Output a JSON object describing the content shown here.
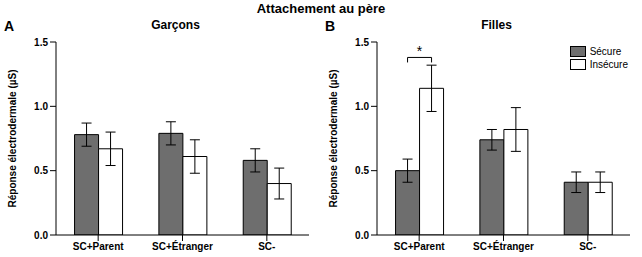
{
  "title": "Attachement au père",
  "chart_data": [
    {
      "type": "bar",
      "panel": "A",
      "title": "Garçons",
      "y_label": "Réponse électrodermale (µS)",
      "categories": [
        "SC+Parent",
        "SC+Étranger",
        "SC-"
      ],
      "series": [
        {
          "name": "Sécure",
          "color": "#6e6e6e",
          "values": [
            0.78,
            0.79,
            0.58
          ],
          "errors": [
            0.09,
            0.09,
            0.09
          ]
        },
        {
          "name": "Insécure",
          "color": "#ffffff",
          "values": [
            0.67,
            0.61,
            0.4
          ],
          "errors": [
            0.13,
            0.13,
            0.12
          ]
        }
      ],
      "ylim": [
        0,
        1.5
      ],
      "yticks": [
        {
          "value": 0,
          "label": "0.0"
        },
        {
          "value": 0.5,
          "label": "0.5"
        },
        {
          "value": 1,
          "label": "1.0"
        },
        {
          "value": 1.5,
          "label": "1.5"
        }
      ],
      "grid": false
    },
    {
      "type": "bar",
      "panel": "B",
      "title": "Filles",
      "y_label": "Réponse électrodermale (µS)",
      "categories": [
        "SC+Parent",
        "SC+Étranger",
        "SC-"
      ],
      "series": [
        {
          "name": "Sécure",
          "color": "#6e6e6e",
          "values": [
            0.5,
            0.74,
            0.41
          ],
          "errors": [
            0.09,
            0.08,
            0.08
          ]
        },
        {
          "name": "Insécure",
          "color": "#ffffff",
          "values": [
            1.14,
            0.82,
            0.41
          ],
          "errors": [
            0.18,
            0.17,
            0.08
          ]
        }
      ],
      "ylim": [
        0,
        1.5
      ],
      "yticks": [
        {
          "value": 0,
          "label": "0.0"
        },
        {
          "value": 0.5,
          "label": "0.5"
        },
        {
          "value": 1,
          "label": "1.0"
        },
        {
          "value": 1.5,
          "label": "1.5"
        }
      ],
      "grid": false,
      "legend": "upper right",
      "annotations": [
        {
          "text": "*",
          "category": "SC+Parent"
        }
      ]
    }
  ]
}
